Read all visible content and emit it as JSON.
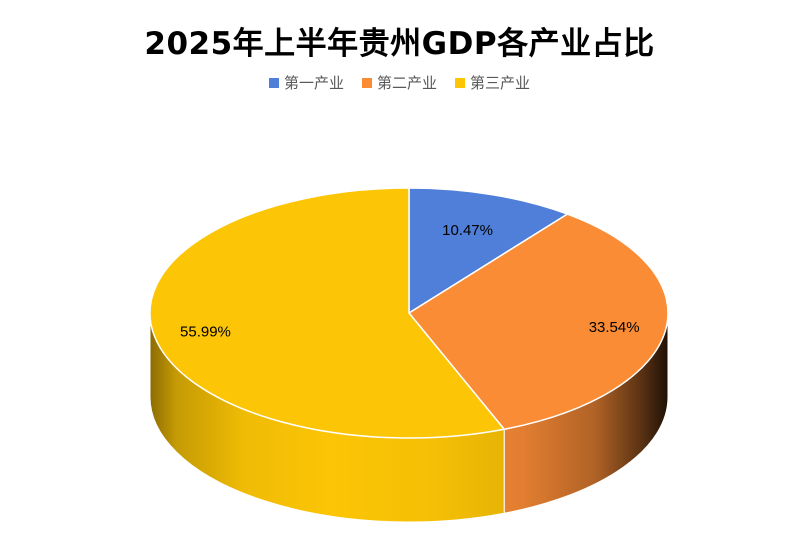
{
  "chart_data": {
    "type": "pie",
    "title": "2025年上半年贵州GDP各产业占比",
    "legend_position": "top",
    "slices": [
      {
        "name": "第一产业",
        "value": 10.47,
        "label": "10.47%",
        "color": "#4F7FD8"
      },
      {
        "name": "第二产业",
        "value": 33.54,
        "label": "33.54%",
        "color": "#FB8C36"
      },
      {
        "name": "第三产业",
        "value": 55.99,
        "label": "55.99%",
        "color": "#FCC505"
      }
    ]
  }
}
